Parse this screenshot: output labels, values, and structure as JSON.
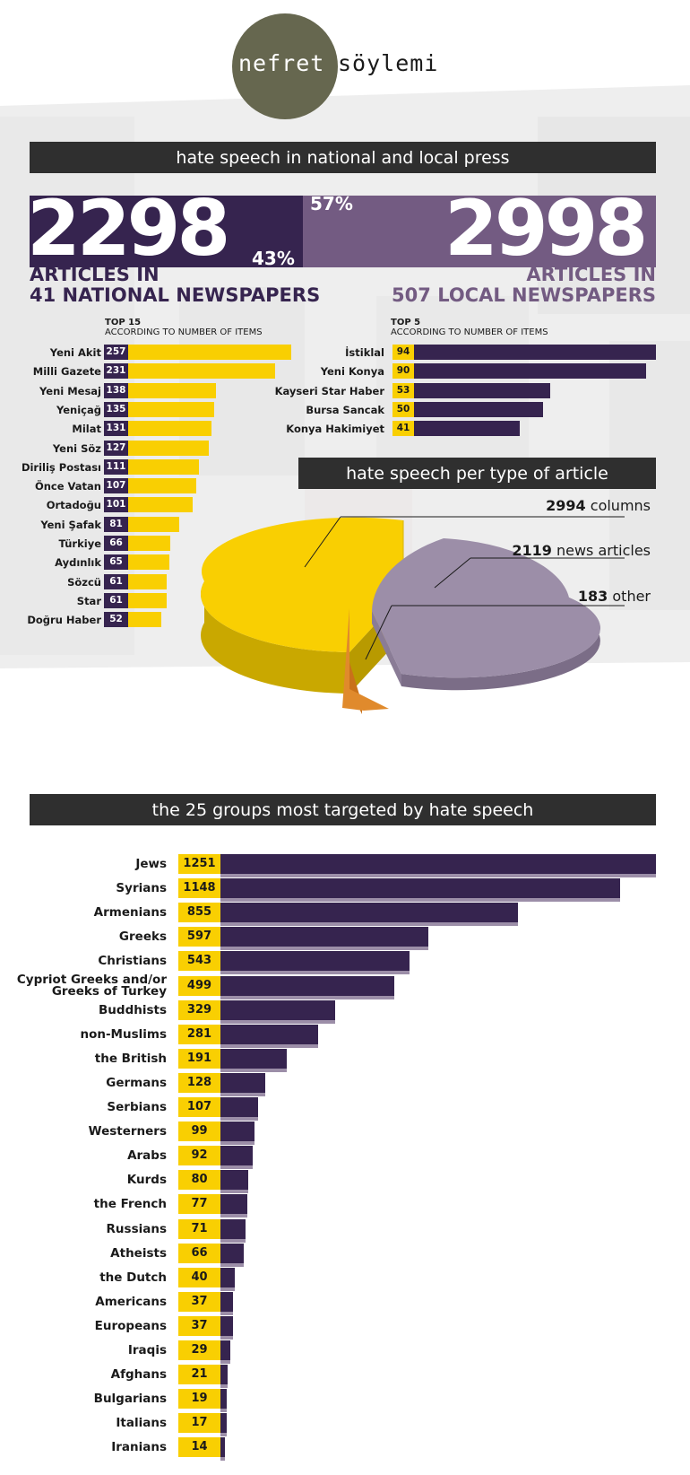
{
  "logo": {
    "part1": "nefret",
    "part2": "söylemi"
  },
  "section1_title": "hate speech in national and local press",
  "national": {
    "count": "2298",
    "pct": "43%",
    "line1": "ARTICLES IN",
    "line2": "41 NATIONAL NEWSPAPERS",
    "top_label_1": "TOP 15",
    "top_label_2": "ACCORDING TO NUMBER OF ITEMS"
  },
  "local": {
    "count": "2998",
    "pct": "57%",
    "line1": "ARTICLES IN",
    "line2": "507 LOCAL NEWSPAPERS",
    "top_label_1": "TOP 5",
    "top_label_2": "ACCORDING TO NUMBER OF ITEMS"
  },
  "section2_title": "hate speech per type of article",
  "section3_title": "the 25 groups most targeted by hate speech",
  "colors": {
    "purple": "#36244f",
    "purple_light": "#735b82",
    "yellow": "#f9cf02",
    "mauve": "#9c8ea8",
    "orange": "#e08a2c",
    "dark": "#2f2f2f"
  },
  "chart_data": [
    {
      "type": "bar",
      "title": "TOP 15 ACCORDING TO NUMBER OF ITEMS",
      "categories": [
        "Yeni Akit",
        "Milli Gazete",
        "Yeni Mesaj",
        "Yeniçağ",
        "Milat",
        "Yeni Söz",
        "Diriliş Postası",
        "Önce Vatan",
        "Ortadoğu",
        "Yeni Şafak",
        "Türkiye",
        "Aydınlık",
        "Sözcü",
        "Star",
        "Doğru Haber"
      ],
      "values": [
        257,
        231,
        138,
        135,
        131,
        127,
        111,
        107,
        101,
        81,
        66,
        65,
        61,
        61,
        52
      ]
    },
    {
      "type": "bar",
      "title": "TOP 5 ACCORDING TO NUMBER OF ITEMS",
      "categories": [
        "İstiklal",
        "Yeni Konya",
        "Kayseri Star Haber",
        "Bursa Sancak",
        "Konya Hakimiyet"
      ],
      "values": [
        94,
        90,
        53,
        50,
        41
      ]
    },
    {
      "type": "pie",
      "title": "hate speech per type of article",
      "slices": [
        {
          "label": "columns",
          "value": 2994
        },
        {
          "label": "news articles",
          "value": 2119
        },
        {
          "label": "other",
          "value": 183
        }
      ]
    },
    {
      "type": "bar",
      "title": "the 25 groups most targeted by hate speech",
      "categories": [
        "Jews",
        "Syrians",
        "Armenians",
        "Greeks",
        "Christians",
        "Cypriot Greeks and/or Greeks of Turkey",
        "Buddhists",
        "non-Muslims",
        "the British",
        "Germans",
        "Serbians",
        "Westerners",
        "Arabs",
        "Kurds",
        "the French",
        "Russians",
        "Atheists",
        "the Dutch",
        "Americans",
        "Europeans",
        "Iraqis",
        "Afghans",
        "Bulgarians",
        "Italians",
        "Iranians"
      ],
      "display_labels": [
        "Jews",
        "Syrians",
        "Armenians",
        "Greeks",
        "Christians",
        "Cypriot Greeks and/or\nGreeks of Turkey",
        "Buddhists",
        "non-Muslims",
        "the British",
        "Germans",
        "Serbians",
        "Westerners",
        "Arabs",
        "Kurds",
        "the French",
        "Russians",
        "Atheists",
        "the Dutch",
        "Americans",
        "Europeans",
        "Iraqis",
        "Afghans",
        "Bulgarians",
        "Italians",
        "Iranians"
      ],
      "values": [
        1251,
        1148,
        855,
        597,
        543,
        499,
        329,
        281,
        191,
        128,
        107,
        99,
        92,
        80,
        77,
        71,
        66,
        40,
        37,
        37,
        29,
        21,
        19,
        17,
        14
      ]
    }
  ]
}
